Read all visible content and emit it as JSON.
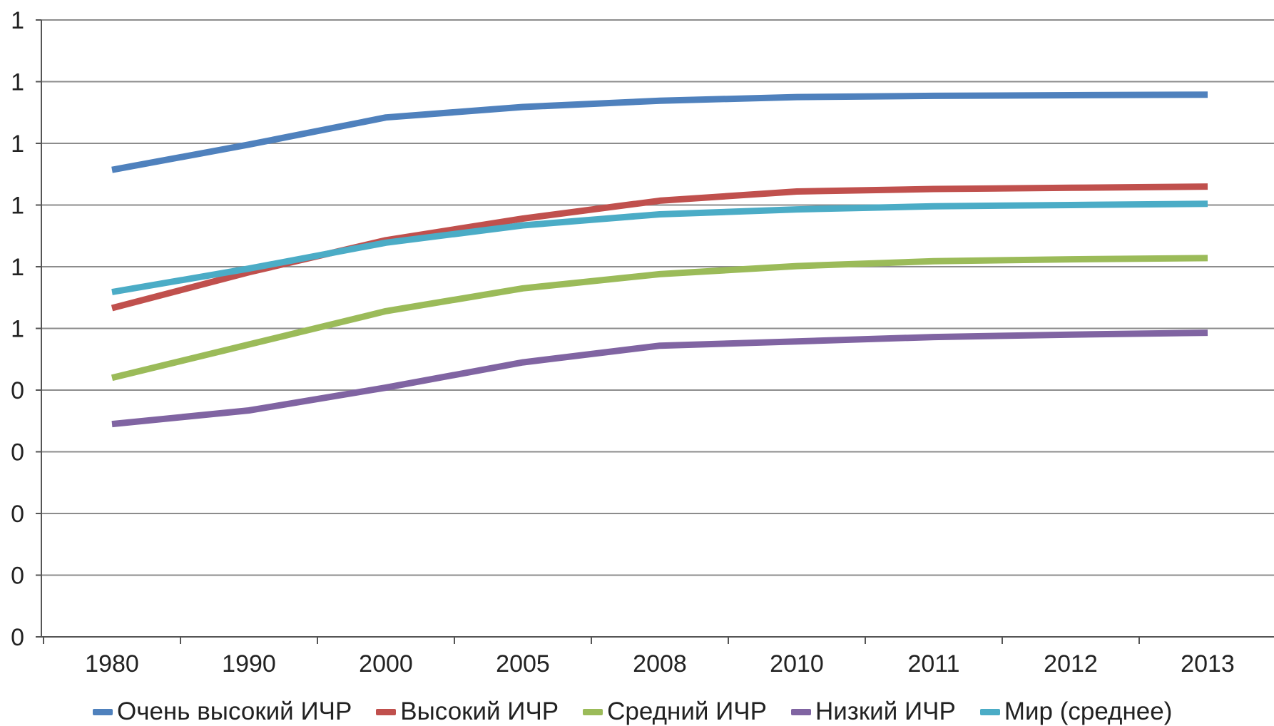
{
  "chart_data": {
    "type": "line",
    "title": "",
    "xlabel": "",
    "ylabel": "",
    "categories": [
      "1980",
      "1990",
      "2000",
      "2005",
      "2008",
      "2010",
      "2011",
      "2012",
      "2013"
    ],
    "y_tick_labels": [
      "0",
      "0",
      "0",
      "0",
      "0",
      "1",
      "1",
      "1",
      "1",
      "1",
      "1"
    ],
    "ylim": [
      0,
      1
    ],
    "grid": true,
    "legend_position": "bottom",
    "series": [
      {
        "name": "Очень высокий ИЧР",
        "color": "#4f81bd",
        "values": [
          0.757,
          0.798,
          0.842,
          0.859,
          0.869,
          0.875,
          0.877,
          0.878,
          0.879
        ]
      },
      {
        "name": "Высокий ИЧР",
        "color": "#c0504d",
        "values": [
          0.533,
          0.591,
          0.643,
          0.678,
          0.707,
          0.722,
          0.726,
          0.728,
          0.73
        ]
      },
      {
        "name": "Средний ИЧР",
        "color": "#9bbb59",
        "values": [
          0.42,
          0.474,
          0.528,
          0.565,
          0.588,
          0.601,
          0.609,
          0.612,
          0.614
        ]
      },
      {
        "name": "Низкий ИЧР",
        "color": "#8064a2",
        "values": [
          0.345,
          0.367,
          0.404,
          0.445,
          0.472,
          0.479,
          0.486,
          0.49,
          0.493
        ]
      },
      {
        "name": "Мир (среднее)",
        "color": "#4bacc6",
        "values": [
          0.559,
          0.597,
          0.639,
          0.667,
          0.685,
          0.693,
          0.698,
          0.7,
          0.702
        ]
      }
    ]
  }
}
